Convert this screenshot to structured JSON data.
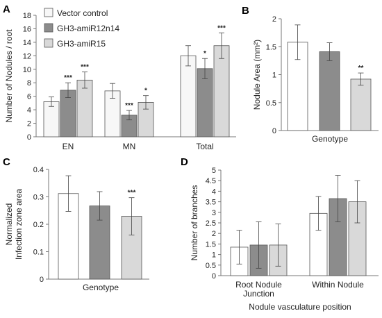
{
  "chart_data": [
    {
      "panel": "A",
      "type": "bar",
      "ylabel": "Number of Nodules / root",
      "ylim": [
        0,
        18
      ],
      "yticks": [
        "0",
        "2",
        "4",
        "6",
        "8",
        "10",
        "12",
        "14",
        "16",
        "18"
      ],
      "categories": [
        "EN",
        "MN",
        "Total"
      ],
      "series": [
        {
          "name": "Vector control",
          "color": "#f7f7f7",
          "values": [
            5.2,
            6.8,
            12.0
          ],
          "errors": [
            0.7,
            1.1,
            1.5
          ],
          "stars": [
            "",
            "",
            ""
          ]
        },
        {
          "name": "GH3-amiR12n14",
          "color": "#8c8c8c",
          "values": [
            6.9,
            3.2,
            10.1
          ],
          "errors": [
            1.1,
            0.7,
            1.5
          ],
          "stars": [
            "***",
            "***",
            "*"
          ]
        },
        {
          "name": "GH3-amiR15",
          "color": "#d9d9d9",
          "values": [
            8.4,
            5.1,
            13.5
          ],
          "errors": [
            1.2,
            1.0,
            1.9
          ],
          "stars": [
            "***",
            "*",
            "***"
          ]
        }
      ],
      "legend_position": "top-left"
    },
    {
      "panel": "B",
      "type": "bar",
      "ylabel": "Nodule Area (mm²)",
      "xlabel": "Genotype",
      "ylim": [
        0,
        2
      ],
      "yticks": [
        "0",
        "0.5",
        "1",
        "1.5",
        "2"
      ],
      "values": [
        1.58,
        1.41,
        0.92
      ],
      "errors": [
        0.31,
        0.16,
        0.11
      ],
      "colors": [
        "#ffffff",
        "#8c8c8c",
        "#d9d9d9"
      ],
      "stars": [
        "",
        "",
        "**"
      ]
    },
    {
      "panel": "C",
      "type": "bar",
      "ylabel_lines": [
        "Normalized",
        "Infection zone area"
      ],
      "xlabel": "Genotype",
      "ylim": [
        0,
        0.4
      ],
      "yticks": [
        "0",
        "0.1",
        "0.2",
        "0.3",
        "0.4"
      ],
      "values": [
        0.312,
        0.267,
        0.229
      ],
      "errors": [
        0.065,
        0.052,
        0.068
      ],
      "colors": [
        "#ffffff",
        "#8c8c8c",
        "#d9d9d9"
      ],
      "stars": [
        "",
        "",
        "***"
      ]
    },
    {
      "panel": "D",
      "type": "bar",
      "ylabel": "Number of branches",
      "xlabel": "Nodule vasculature position",
      "ylim": [
        0,
        5
      ],
      "yticks": [
        "0",
        "0.5",
        "1",
        "1.5",
        "2",
        "2.5",
        "3",
        "3.5",
        "4",
        "4.5",
        "5"
      ],
      "categories": [
        [
          "Root Nodule",
          "Junction"
        ],
        [
          "Within Nodule"
        ]
      ],
      "series": [
        {
          "color": "#ffffff",
          "values": [
            1.35,
            2.95
          ],
          "errors": [
            0.8,
            0.8
          ]
        },
        {
          "color": "#8c8c8c",
          "values": [
            1.45,
            3.65
          ],
          "errors": [
            1.1,
            1.1
          ]
        },
        {
          "color": "#d9d9d9",
          "values": [
            1.45,
            3.5
          ],
          "errors": [
            1.0,
            1.0
          ]
        }
      ]
    }
  ]
}
